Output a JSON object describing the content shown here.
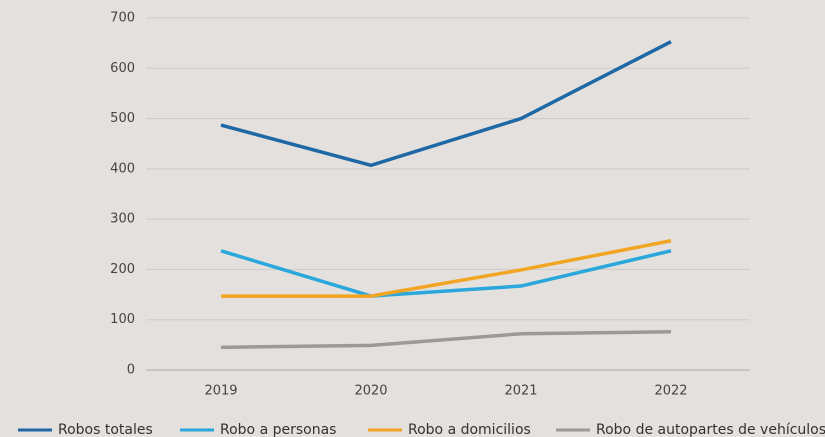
{
  "chart_data": {
    "type": "line",
    "categories": [
      "2019",
      "2020",
      "2021",
      "2022"
    ],
    "series": [
      {
        "name": "Robos totales",
        "color": "#1f68a6",
        "values": [
          487,
          407,
          500,
          653
        ]
      },
      {
        "name": "Robo a personas",
        "color": "#2aa7dc",
        "values": [
          237,
          147,
          167,
          237
        ]
      },
      {
        "name": "Robo a domicilios",
        "color": "#f2a523",
        "values": [
          147,
          147,
          199,
          257
        ]
      },
      {
        "name": "Robo de autopartes de vehículos",
        "color": "#9a9a9a",
        "values": [
          45,
          49,
          72,
          76
        ]
      }
    ],
    "ylim": [
      0,
      700
    ],
    "yticks": [
      0,
      100,
      200,
      300,
      400,
      500,
      600,
      700
    ],
    "grid": true
  }
}
